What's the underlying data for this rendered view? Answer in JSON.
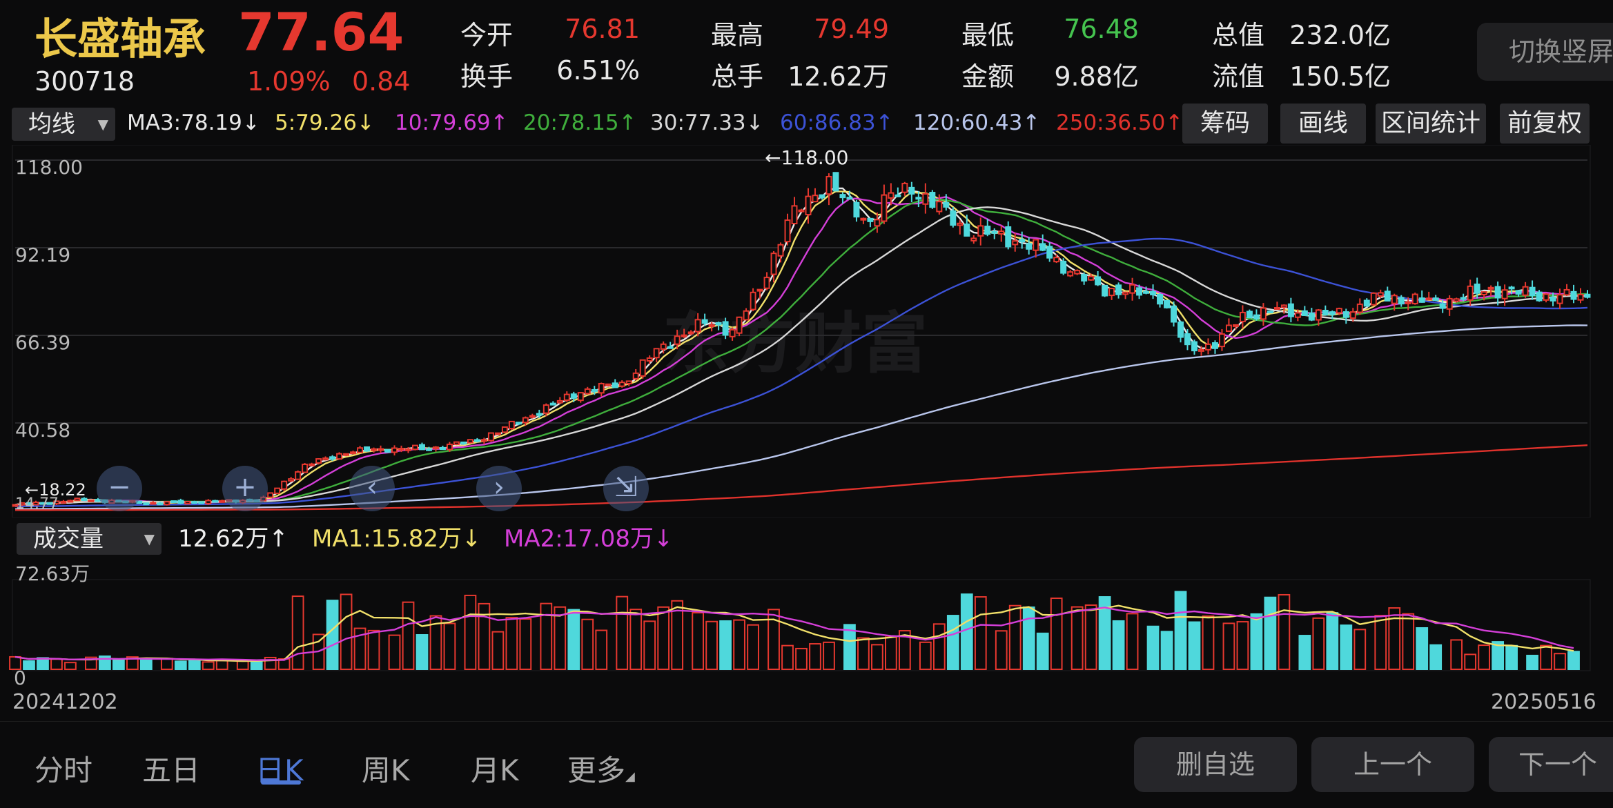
{
  "header": {
    "name": "长盛轴承",
    "code": "300718",
    "price": "77.64",
    "change_pct": "1.09%",
    "change": "0.84",
    "quotes": [
      {
        "label": "今开",
        "value": "76.81",
        "color": "red"
      },
      {
        "label": "最高",
        "value": "79.49",
        "color": "red"
      },
      {
        "label": "最低",
        "value": "76.48",
        "color": "green"
      },
      {
        "label": "总值",
        "value": "232.0亿",
        "color": "white"
      },
      {
        "label": "换手",
        "value": "6.51%",
        "color": "white"
      },
      {
        "label": "总手",
        "value": "12.62万",
        "color": "white"
      },
      {
        "label": "金额",
        "value": "9.88亿",
        "color": "white"
      },
      {
        "label": "流值",
        "value": "150.5亿",
        "color": "white"
      }
    ],
    "switch_label": "切换竖屏"
  },
  "ma_bar": {
    "selector": "均线",
    "items": [
      {
        "text": "MA3:78.19↓",
        "color": "#e8e8e8"
      },
      {
        "text": "5:79.26↓",
        "color": "#f1e06a"
      },
      {
        "text": "10:79.69↑",
        "color": "#d43fd8"
      },
      {
        "text": "20:78.15↑",
        "color": "#3fae3c"
      },
      {
        "text": "30:77.33↓",
        "color": "#d8d8d8"
      },
      {
        "text": "60:86.83↑",
        "color": "#3c52d6"
      },
      {
        "text": "120:60.43↑",
        "color": "#b9c6ec"
      },
      {
        "text": "250:36.50↑",
        "color": "#e0322c"
      }
    ],
    "buttons": [
      "筹码",
      "画线",
      "区间统计",
      "前复权"
    ]
  },
  "price_axis": {
    "labels": [
      "118.00",
      "92.19",
      "66.39",
      "40.58"
    ],
    "high_marker": "118.00",
    "low_marker": "18.22",
    "low_marker_2": "14.77"
  },
  "volume_bar": {
    "selector": "成交量",
    "current": "12.62万↑",
    "ma1": "MA1:15.82万↓",
    "ma2": "MA2:17.08万↓",
    "axis_top": "72.63万",
    "axis_zero": "0"
  },
  "dates": {
    "start": "20241202",
    "end": "20250516"
  },
  "bottom_tabs": [
    "分时",
    "五日",
    "日K",
    "周K",
    "月K",
    "更多"
  ],
  "bottom_buttons": [
    "删自选",
    "上一个",
    "下一个"
  ],
  "watermark": "东方财富",
  "colors": {
    "up": "#e6382f",
    "down": "#4fd8dc",
    "accent": "#4e78d6"
  },
  "chart_data": {
    "type": "candlestick",
    "x_range": [
      "20241202",
      "20250516"
    ],
    "ylim": [
      14.77,
      118.0
    ],
    "y_ticks": [
      118.0,
      92.19,
      66.39,
      40.58
    ],
    "close_path": [
      [
        0,
        16.5
      ],
      [
        10,
        18.0
      ],
      [
        20,
        17.0
      ],
      [
        30,
        17.5
      ],
      [
        36,
        18.2
      ],
      [
        42,
        28
      ],
      [
        48,
        32
      ],
      [
        54,
        33
      ],
      [
        60,
        33
      ],
      [
        66,
        35
      ],
      [
        70,
        38
      ],
      [
        76,
        44
      ],
      [
        82,
        50
      ],
      [
        88,
        52
      ],
      [
        92,
        60
      ],
      [
        96,
        66
      ],
      [
        100,
        70
      ],
      [
        104,
        68
      ],
      [
        108,
        80
      ],
      [
        112,
        100
      ],
      [
        116,
        108
      ],
      [
        118,
        112
      ],
      [
        121,
        104
      ],
      [
        124,
        100
      ],
      [
        126,
        106
      ],
      [
        130,
        110
      ],
      [
        134,
        104
      ],
      [
        138,
        97
      ],
      [
        142,
        96
      ],
      [
        146,
        94
      ],
      [
        150,
        90
      ],
      [
        154,
        84
      ],
      [
        158,
        80
      ],
      [
        162,
        79
      ],
      [
        166,
        78
      ],
      [
        170,
        62
      ],
      [
        174,
        64
      ],
      [
        178,
        72
      ],
      [
        182,
        74
      ],
      [
        186,
        73
      ],
      [
        190,
        72
      ],
      [
        194,
        74
      ],
      [
        198,
        78
      ],
      [
        202,
        77
      ],
      [
        206,
        76
      ],
      [
        210,
        78
      ],
      [
        214,
        80
      ],
      [
        218,
        79
      ],
      [
        222,
        78
      ],
      [
        228,
        77.64
      ]
    ],
    "ma_lines": [
      {
        "name": "MA3",
        "last": 78.19
      },
      {
        "name": "MA5",
        "last": 79.26
      },
      {
        "name": "MA10",
        "last": 79.69
      },
      {
        "name": "MA20",
        "last": 78.15
      },
      {
        "name": "MA30",
        "last": 77.33
      },
      {
        "name": "MA60",
        "last": 86.83
      },
      {
        "name": "MA120",
        "last": 60.43
      },
      {
        "name": "MA250",
        "last": 36.5
      }
    ],
    "volume": {
      "unit": "万",
      "ylim": [
        0,
        72.63
      ],
      "last": 12.62,
      "ma1_last": 15.82,
      "ma2_last": 17.08
    }
  }
}
